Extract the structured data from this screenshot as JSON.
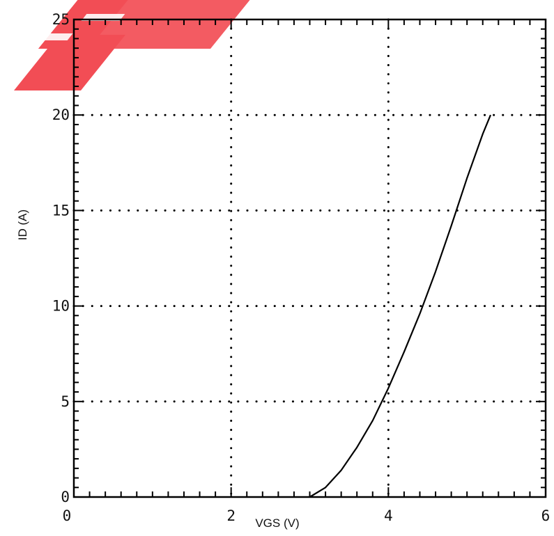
{
  "chart_data": {
    "type": "line",
    "title": "",
    "xlabel": "VGS (V)",
    "ylabel": "ID (A)",
    "xlim": [
      0,
      6
    ],
    "ylim": [
      0,
      25
    ],
    "x_ticks": [
      0,
      2,
      4,
      6
    ],
    "y_ticks": [
      0,
      5,
      10,
      15,
      20,
      25
    ],
    "x_tick_labels": [
      "0",
      "2",
      "4",
      "6"
    ],
    "y_tick_labels": [
      "0",
      "5",
      "10",
      "15",
      "20",
      "25"
    ],
    "grid": true,
    "grid_style": "dotted",
    "series": [
      {
        "color": "#000000",
        "x": [
          3.0,
          3.2,
          3.4,
          3.6,
          3.8,
          4.0,
          4.2,
          4.4,
          4.6,
          4.8,
          5.0,
          5.2,
          5.3
        ],
        "y": [
          0.0,
          0.5,
          1.4,
          2.6,
          4.0,
          5.7,
          7.6,
          9.6,
          11.8,
          14.2,
          16.7,
          19.0,
          20.0
        ]
      }
    ]
  },
  "watermark": {
    "color": "#f24d55"
  }
}
